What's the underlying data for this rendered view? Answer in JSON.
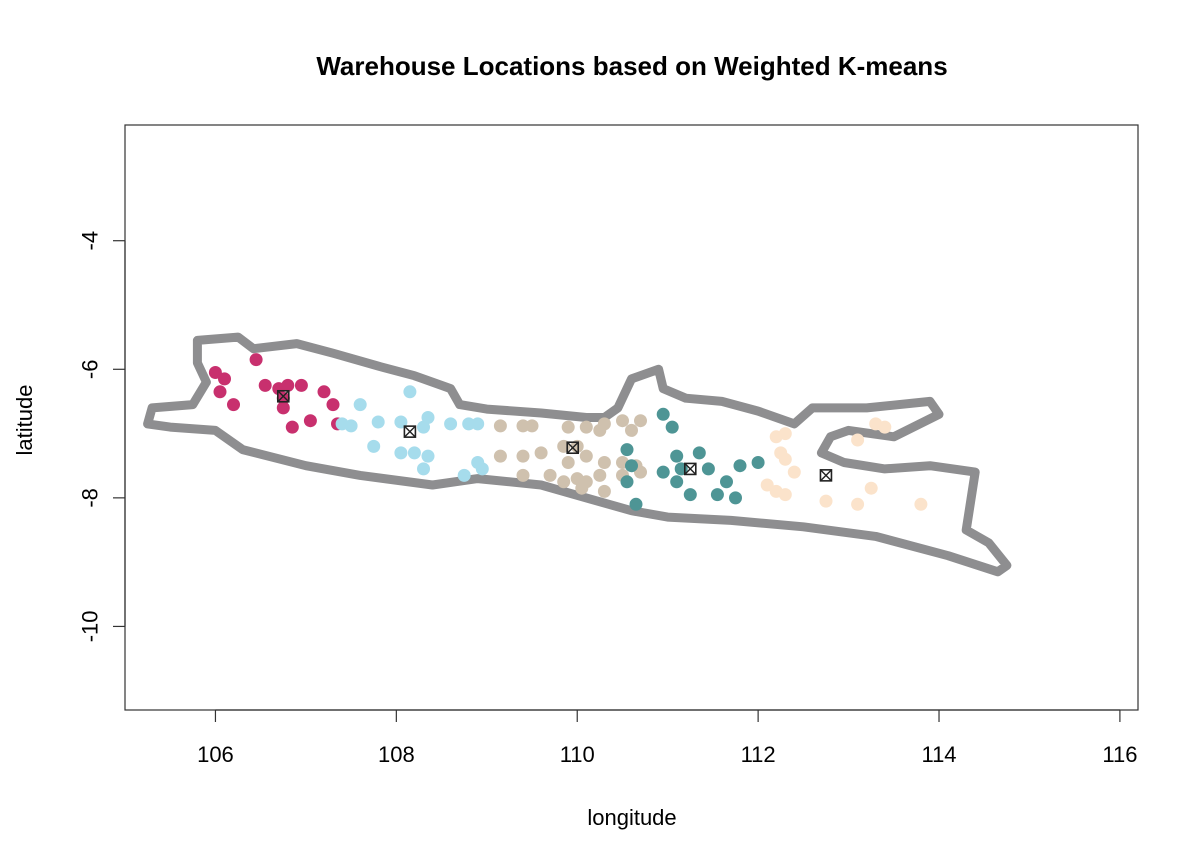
{
  "chart_data": {
    "type": "scatter",
    "title": "Warehouse Locations based on Weighted K-means",
    "xlabel": "longitude",
    "ylabel": "latitude",
    "xlim": [
      105,
      116.2
    ],
    "ylim": [
      -11.3,
      -2.2
    ],
    "x_ticks": [
      106,
      108,
      110,
      112,
      114,
      116
    ],
    "x_tick_labels": [
      "106",
      "108",
      "110",
      "112",
      "114",
      "116"
    ],
    "y_ticks": [
      -4,
      -6,
      -8,
      -10
    ],
    "y_tick_labels": [
      "-4",
      "-6",
      "-8",
      "-10"
    ],
    "grid": false,
    "colors": {
      "cluster1": "#c8306e",
      "cluster2": "#a6dcec",
      "cluster3": "#cfc1ae",
      "cluster4": "#4e9595",
      "cluster5": "#fbe3cb",
      "land_outline": "#8e8e90",
      "centroid": "#222222"
    },
    "land_outline": [
      [
        105.8,
        -5.55
      ],
      [
        106.25,
        -5.5
      ],
      [
        106.42,
        -5.68
      ],
      [
        106.9,
        -5.6
      ],
      [
        107.3,
        -5.75
      ],
      [
        107.8,
        -5.95
      ],
      [
        108.2,
        -6.1
      ],
      [
        108.6,
        -6.3
      ],
      [
        108.7,
        -6.55
      ],
      [
        109.0,
        -6.62
      ],
      [
        109.6,
        -6.68
      ],
      [
        110.1,
        -6.75
      ],
      [
        110.3,
        -6.75
      ],
      [
        110.45,
        -6.6
      ],
      [
        110.6,
        -6.15
      ],
      [
        110.9,
        -6.0
      ],
      [
        110.95,
        -6.3
      ],
      [
        111.2,
        -6.45
      ],
      [
        111.6,
        -6.5
      ],
      [
        112.0,
        -6.65
      ],
      [
        112.4,
        -6.85
      ],
      [
        112.6,
        -6.6
      ],
      [
        113.2,
        -6.6
      ],
      [
        113.9,
        -6.5
      ],
      [
        114.0,
        -6.7
      ],
      [
        113.5,
        -7.05
      ],
      [
        113.0,
        -6.95
      ],
      [
        112.8,
        -7.05
      ],
      [
        112.7,
        -7.3
      ],
      [
        112.95,
        -7.45
      ],
      [
        113.4,
        -7.55
      ],
      [
        113.9,
        -7.5
      ],
      [
        114.4,
        -7.6
      ],
      [
        114.3,
        -8.5
      ],
      [
        114.55,
        -8.7
      ],
      [
        114.75,
        -9.05
      ],
      [
        114.65,
        -9.15
      ],
      [
        114.1,
        -8.9
      ],
      [
        113.3,
        -8.6
      ],
      [
        112.5,
        -8.45
      ],
      [
        111.7,
        -8.35
      ],
      [
        111.0,
        -8.3
      ],
      [
        110.6,
        -8.2
      ],
      [
        110.1,
        -8.0
      ],
      [
        109.6,
        -7.8
      ],
      [
        108.9,
        -7.7
      ],
      [
        108.4,
        -7.8
      ],
      [
        107.6,
        -7.65
      ],
      [
        107.0,
        -7.5
      ],
      [
        106.3,
        -7.25
      ],
      [
        106.0,
        -6.95
      ],
      [
        105.5,
        -6.9
      ],
      [
        105.25,
        -6.85
      ],
      [
        105.3,
        -6.6
      ],
      [
        105.75,
        -6.55
      ],
      [
        105.9,
        -6.2
      ],
      [
        105.8,
        -5.9
      ]
    ],
    "series": [
      {
        "points": [
          [
            106.0,
            -6.05
          ],
          [
            106.1,
            -6.15
          ],
          [
            106.05,
            -6.35
          ],
          [
            106.2,
            -6.55
          ],
          [
            106.45,
            -5.85
          ],
          [
            106.55,
            -6.25
          ],
          [
            106.7,
            -6.3
          ],
          [
            106.8,
            -6.25
          ],
          [
            106.95,
            -6.25
          ],
          [
            106.75,
            -6.45
          ],
          [
            106.75,
            -6.6
          ],
          [
            106.85,
            -6.9
          ],
          [
            107.05,
            -6.8
          ],
          [
            107.2,
            -6.35
          ],
          [
            107.3,
            -6.55
          ],
          [
            107.35,
            -6.85
          ]
        ]
      },
      {
        "points": [
          [
            107.4,
            -6.85
          ],
          [
            107.5,
            -6.88
          ],
          [
            107.6,
            -6.55
          ],
          [
            107.8,
            -6.82
          ],
          [
            107.75,
            -7.2
          ],
          [
            108.05,
            -6.82
          ],
          [
            108.15,
            -6.35
          ],
          [
            108.05,
            -7.3
          ],
          [
            108.2,
            -7.3
          ],
          [
            108.3,
            -6.9
          ],
          [
            108.35,
            -6.75
          ],
          [
            108.35,
            -7.35
          ],
          [
            108.3,
            -7.55
          ],
          [
            108.6,
            -6.85
          ],
          [
            108.8,
            -6.85
          ],
          [
            108.9,
            -6.85
          ],
          [
            108.9,
            -7.45
          ],
          [
            108.95,
            -7.55
          ],
          [
            108.75,
            -7.65
          ]
        ]
      },
      {
        "points": [
          [
            109.15,
            -6.88
          ],
          [
            109.4,
            -6.88
          ],
          [
            109.5,
            -6.88
          ],
          [
            109.9,
            -6.9
          ],
          [
            110.1,
            -6.9
          ],
          [
            110.25,
            -6.95
          ],
          [
            110.3,
            -6.85
          ],
          [
            110.5,
            -6.8
          ],
          [
            110.6,
            -6.95
          ],
          [
            110.7,
            -6.8
          ],
          [
            109.15,
            -7.35
          ],
          [
            109.4,
            -7.35
          ],
          [
            109.6,
            -7.3
          ],
          [
            109.85,
            -7.2
          ],
          [
            110.0,
            -7.2
          ],
          [
            109.9,
            -7.45
          ],
          [
            110.1,
            -7.35
          ],
          [
            110.3,
            -7.45
          ],
          [
            110.5,
            -7.45
          ],
          [
            110.65,
            -7.5
          ],
          [
            110.7,
            -7.6
          ],
          [
            109.4,
            -7.65
          ],
          [
            109.7,
            -7.65
          ],
          [
            110.0,
            -7.7
          ],
          [
            110.1,
            -7.75
          ],
          [
            110.25,
            -7.65
          ],
          [
            110.5,
            -7.65
          ],
          [
            109.85,
            -7.75
          ],
          [
            110.05,
            -7.85
          ],
          [
            110.3,
            -7.9
          ]
        ]
      },
      {
        "points": [
          [
            110.95,
            -6.7
          ],
          [
            111.05,
            -6.9
          ],
          [
            110.55,
            -7.25
          ],
          [
            110.6,
            -7.5
          ],
          [
            110.55,
            -7.75
          ],
          [
            110.65,
            -8.1
          ],
          [
            110.95,
            -7.6
          ],
          [
            111.1,
            -7.35
          ],
          [
            111.15,
            -7.55
          ],
          [
            111.1,
            -7.75
          ],
          [
            111.25,
            -7.95
          ],
          [
            111.35,
            -7.3
          ],
          [
            111.45,
            -7.55
          ],
          [
            111.55,
            -7.95
          ],
          [
            111.65,
            -7.75
          ],
          [
            111.75,
            -8.0
          ],
          [
            111.8,
            -7.5
          ],
          [
            112.0,
            -7.45
          ]
        ]
      },
      {
        "points": [
          [
            112.2,
            -7.05
          ],
          [
            112.3,
            -7.0
          ],
          [
            112.25,
            -7.3
          ],
          [
            112.3,
            -7.4
          ],
          [
            112.4,
            -7.6
          ],
          [
            112.1,
            -7.8
          ],
          [
            112.2,
            -7.9
          ],
          [
            112.3,
            -7.95
          ],
          [
            112.75,
            -8.05
          ],
          [
            113.1,
            -7.1
          ],
          [
            113.3,
            -6.85
          ],
          [
            113.4,
            -6.9
          ],
          [
            113.25,
            -7.85
          ],
          [
            113.1,
            -8.1
          ],
          [
            113.8,
            -8.1
          ]
        ]
      }
    ],
    "centroids": [
      [
        106.75,
        -6.42
      ],
      [
        108.15,
        -6.97
      ],
      [
        109.95,
        -7.22
      ],
      [
        111.25,
        -7.55
      ],
      [
        112.75,
        -7.65
      ]
    ]
  }
}
